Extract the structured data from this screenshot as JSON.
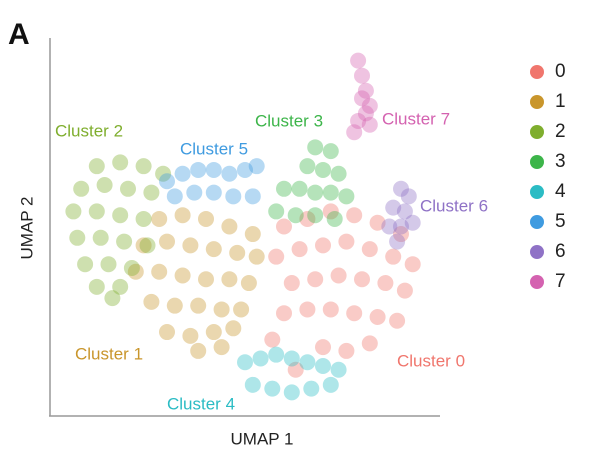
{
  "chart_data": {
    "type": "scatter",
    "panel_label": "A",
    "x_label": "UMAP 1",
    "y_label": "UMAP 2",
    "xlim": [
      0,
      100
    ],
    "ylim": [
      0,
      100
    ],
    "legend": "right",
    "annotations": [
      "Cluster 0",
      "Cluster 1",
      "Cluster 2",
      "Cluster 3",
      "Cluster 4",
      "Cluster 5",
      "Cluster 6",
      "Cluster 7"
    ],
    "series": [
      {
        "name": "0",
        "color": "#f0766d",
        "x": [
          60,
          66,
          72,
          78,
          84,
          90,
          58,
          64,
          70,
          76,
          82,
          88,
          93,
          62,
          68,
          74,
          80,
          86,
          91,
          60,
          66,
          72,
          78,
          84,
          89,
          70,
          76,
          82,
          63,
          57
        ],
        "values": [
          50,
          52,
          54,
          53,
          51,
          48,
          42,
          44,
          45,
          46,
          44,
          42,
          40,
          35,
          36,
          37,
          36,
          35,
          33,
          27,
          28,
          28,
          27,
          26,
          25,
          18,
          17,
          19,
          12,
          20
        ]
      },
      {
        "name": "1",
        "color": "#c9962c",
        "x": [
          28,
          34,
          40,
          46,
          52,
          24,
          30,
          36,
          42,
          48,
          53,
          22,
          28,
          34,
          40,
          46,
          51,
          26,
          32,
          38,
          44,
          49,
          30,
          36,
          42,
          47,
          38,
          44
        ],
        "values": [
          52,
          53,
          52,
          50,
          48,
          45,
          46,
          45,
          44,
          43,
          42,
          38,
          38,
          37,
          36,
          36,
          35,
          30,
          29,
          29,
          28,
          28,
          22,
          21,
          22,
          23,
          17,
          18
        ]
      },
      {
        "name": "2",
        "color": "#7fae2e",
        "x": [
          12,
          18,
          24,
          29,
          8,
          14,
          20,
          26,
          6,
          12,
          18,
          24,
          7,
          13,
          19,
          25,
          9,
          15,
          21,
          12,
          18,
          16
        ],
        "values": [
          66,
          67,
          66,
          64,
          60,
          61,
          60,
          59,
          54,
          54,
          53,
          52,
          47,
          47,
          46,
          45,
          40,
          40,
          39,
          34,
          34,
          31
        ]
      },
      {
        "name": "3",
        "color": "#3db54a",
        "x": [
          68,
          72,
          66,
          70,
          74,
          60,
          64,
          68,
          72,
          76,
          58,
          63,
          68,
          73
        ],
        "values": [
          71,
          70,
          66,
          65,
          64,
          60,
          60,
          59,
          59,
          58,
          54,
          53,
          53,
          52
        ]
      },
      {
        "name": "4",
        "color": "#2bbcc4",
        "x": [
          50,
          54,
          58,
          62,
          66,
          70,
          74,
          52,
          57,
          62,
          67,
          72
        ],
        "values": [
          14,
          15,
          16,
          15,
          14,
          13,
          12,
          8,
          7,
          6,
          7,
          8
        ]
      },
      {
        "name": "5",
        "color": "#3f9be0",
        "x": [
          30,
          34,
          38,
          42,
          46,
          50,
          53,
          32,
          37,
          42,
          47,
          52
        ],
        "values": [
          62,
          64,
          65,
          65,
          64,
          65,
          66,
          58,
          59,
          59,
          58,
          58
        ]
      },
      {
        "name": "6",
        "color": "#8f72c6",
        "x": [
          90,
          92,
          88,
          91,
          87,
          90,
          93,
          89
        ],
        "values": [
          60,
          58,
          55,
          54,
          50,
          50,
          51,
          46
        ]
      },
      {
        "name": "7",
        "color": "#d462b0",
        "x": [
          79,
          80,
          81,
          80,
          82,
          81,
          79,
          78,
          82
        ],
        "values": [
          94,
          90,
          86,
          84,
          82,
          80,
          78,
          75,
          77
        ]
      }
    ]
  }
}
